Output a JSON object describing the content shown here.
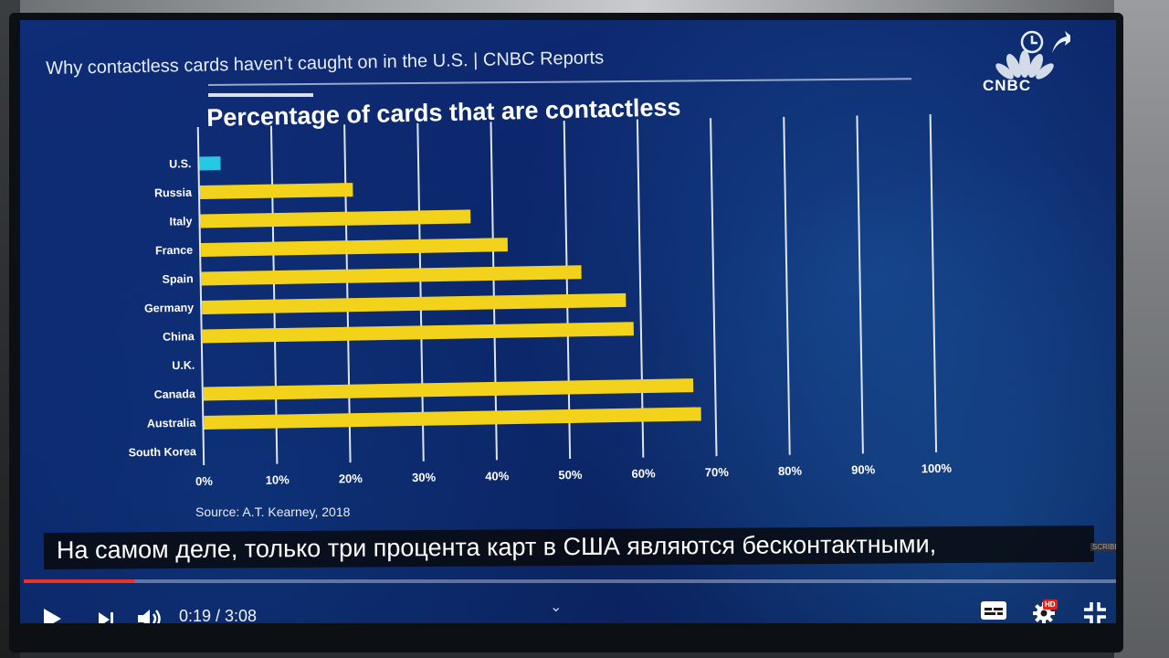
{
  "video": {
    "title": "Why contactless cards haven’t caught on in the U.S. | CNBC Reports",
    "channel_logo_text": "CNBC",
    "source_note": "Source: A.T. Kearney, 2018",
    "subtitle": "На самом деле, только три процента карт в США являются бесконтактными,",
    "subtitle_tag": "SCRIBE"
  },
  "player": {
    "current_time": "0:19",
    "duration": "3:08",
    "time_display": "0:19 / 3:08",
    "progress_fraction": 0.101,
    "buffered_fraction": 1.0,
    "hd_badge": "HD",
    "buttons": [
      "play",
      "next",
      "volume",
      "subtitles",
      "settings",
      "exit-fullscreen"
    ]
  },
  "colors": {
    "bar": "#f2d21a",
    "highlight_bar": "#25c9e6",
    "progress": "#e8322a",
    "grid": "#dfe6f2"
  },
  "chart_data": {
    "type": "bar",
    "orientation": "horizontal",
    "title": "Percentage of cards that are contactless",
    "categories": [
      "U.S.",
      "Russia",
      "Italy",
      "France",
      "Spain",
      "Germany",
      "China",
      "U.K.",
      "Canada",
      "Australia",
      "South Korea"
    ],
    "values": [
      3,
      21,
      37,
      42,
      52,
      58,
      59,
      null,
      67,
      68,
      null
    ],
    "highlight": "U.S.",
    "xlim": [
      0,
      100
    ],
    "xticks": [
      "0%",
      "10%",
      "20%",
      "30%",
      "40%",
      "50%",
      "60%",
      "70%",
      "80%",
      "90%",
      "100%"
    ],
    "grid": true,
    "xlabel": "",
    "ylabel": ""
  }
}
